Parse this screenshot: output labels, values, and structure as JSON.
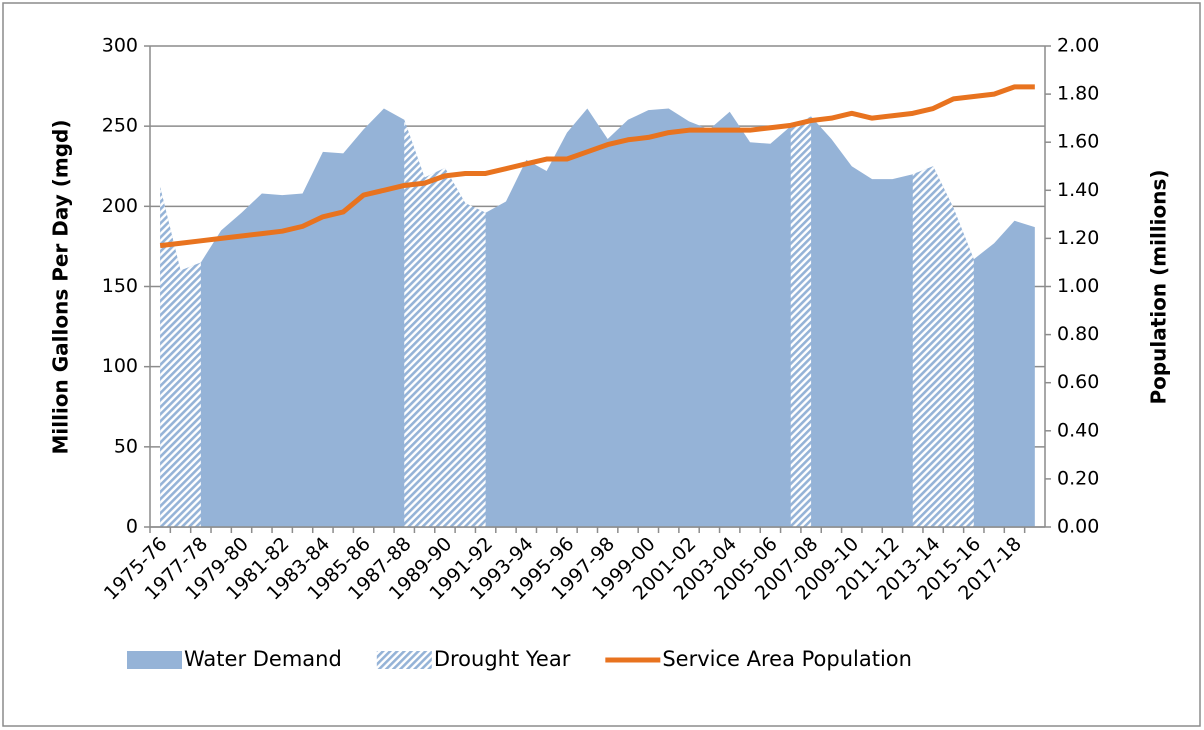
{
  "chart_data": {
    "type": "area-line",
    "y_label": "Million Gallons Per Day (mgd)",
    "y2_label": "Population (millions)",
    "categories": [
      "1975-76",
      null,
      "1977-78",
      null,
      "1979-80",
      null,
      "1981-82",
      null,
      "1983-84",
      null,
      "1985-86",
      null,
      "1987-88",
      null,
      "1989-90",
      null,
      "1991-92",
      null,
      "1993-94",
      null,
      "1995-96",
      null,
      "1997-98",
      null,
      "1999-00",
      null,
      "2001-02",
      null,
      "2003-04",
      null,
      "2005-06",
      null,
      "2007-08",
      null,
      "2009-10",
      null,
      "2011-12",
      null,
      "2013-14",
      null,
      "2015-16",
      null,
      "2017-18",
      null
    ],
    "ylim": [
      0,
      300
    ],
    "yticks": [
      0,
      50,
      100,
      150,
      200,
      250,
      300
    ],
    "y2lim": [
      0,
      2
    ],
    "y2ticks": [
      {
        "value": 0,
        "label": "0.00"
      },
      {
        "value": 0.2,
        "label": "0.20"
      },
      {
        "value": 0.4,
        "label": "0.40"
      },
      {
        "value": 0.6,
        "label": "0.60"
      },
      {
        "value": 0.8,
        "label": "0.80"
      },
      {
        "value": 1,
        "label": "1.00"
      },
      {
        "value": 1.2,
        "label": "1.20"
      },
      {
        "value": 1.4,
        "label": "1.40"
      },
      {
        "value": 1.6,
        "label": "1.60"
      },
      {
        "value": 1.8,
        "label": "1.80"
      },
      {
        "value": 2,
        "label": "2.00"
      }
    ],
    "grid": true,
    "legend": "bottom",
    "series": [
      {
        "name": "Water Demand",
        "kind": "area",
        "color": "#95b3d7",
        "values": [
          212,
          160,
          165,
          185,
          196,
          208,
          207,
          208,
          234,
          233,
          248,
          261,
          254,
          218,
          224,
          202,
          196,
          203,
          229,
          222,
          246,
          261,
          242,
          254,
          260,
          261,
          253,
          248,
          259,
          240,
          239,
          250,
          256,
          242,
          225,
          217,
          217,
          220,
          225,
          199,
          167,
          177,
          191,
          187
        ]
      },
      {
        "name": "Drought Year",
        "kind": "hatch",
        "color": "#95b3d7",
        "values": [
          212,
          160,
          165,
          null,
          null,
          null,
          null,
          null,
          null,
          null,
          null,
          null,
          254,
          218,
          224,
          202,
          196,
          null,
          null,
          null,
          null,
          null,
          null,
          null,
          null,
          null,
          null,
          null,
          null,
          null,
          null,
          250,
          256,
          null,
          null,
          null,
          null,
          220,
          225,
          199,
          167,
          null,
          null,
          null
        ]
      },
      {
        "name": "Service Area Population",
        "kind": "line",
        "axis": "y2",
        "color": "#e8731f",
        "values": [
          1.17,
          1.18,
          1.19,
          1.2,
          1.21,
          1.22,
          1.23,
          1.25,
          1.29,
          1.31,
          1.38,
          1.4,
          1.42,
          1.43,
          1.46,
          1.47,
          1.47,
          1.49,
          1.51,
          1.53,
          1.53,
          1.56,
          1.59,
          1.61,
          1.62,
          1.64,
          1.65,
          1.65,
          1.65,
          1.65,
          1.66,
          1.67,
          1.69,
          1.7,
          1.72,
          1.7,
          1.71,
          1.72,
          1.74,
          1.78,
          1.79,
          1.8,
          1.83,
          1.83
        ]
      }
    ]
  }
}
